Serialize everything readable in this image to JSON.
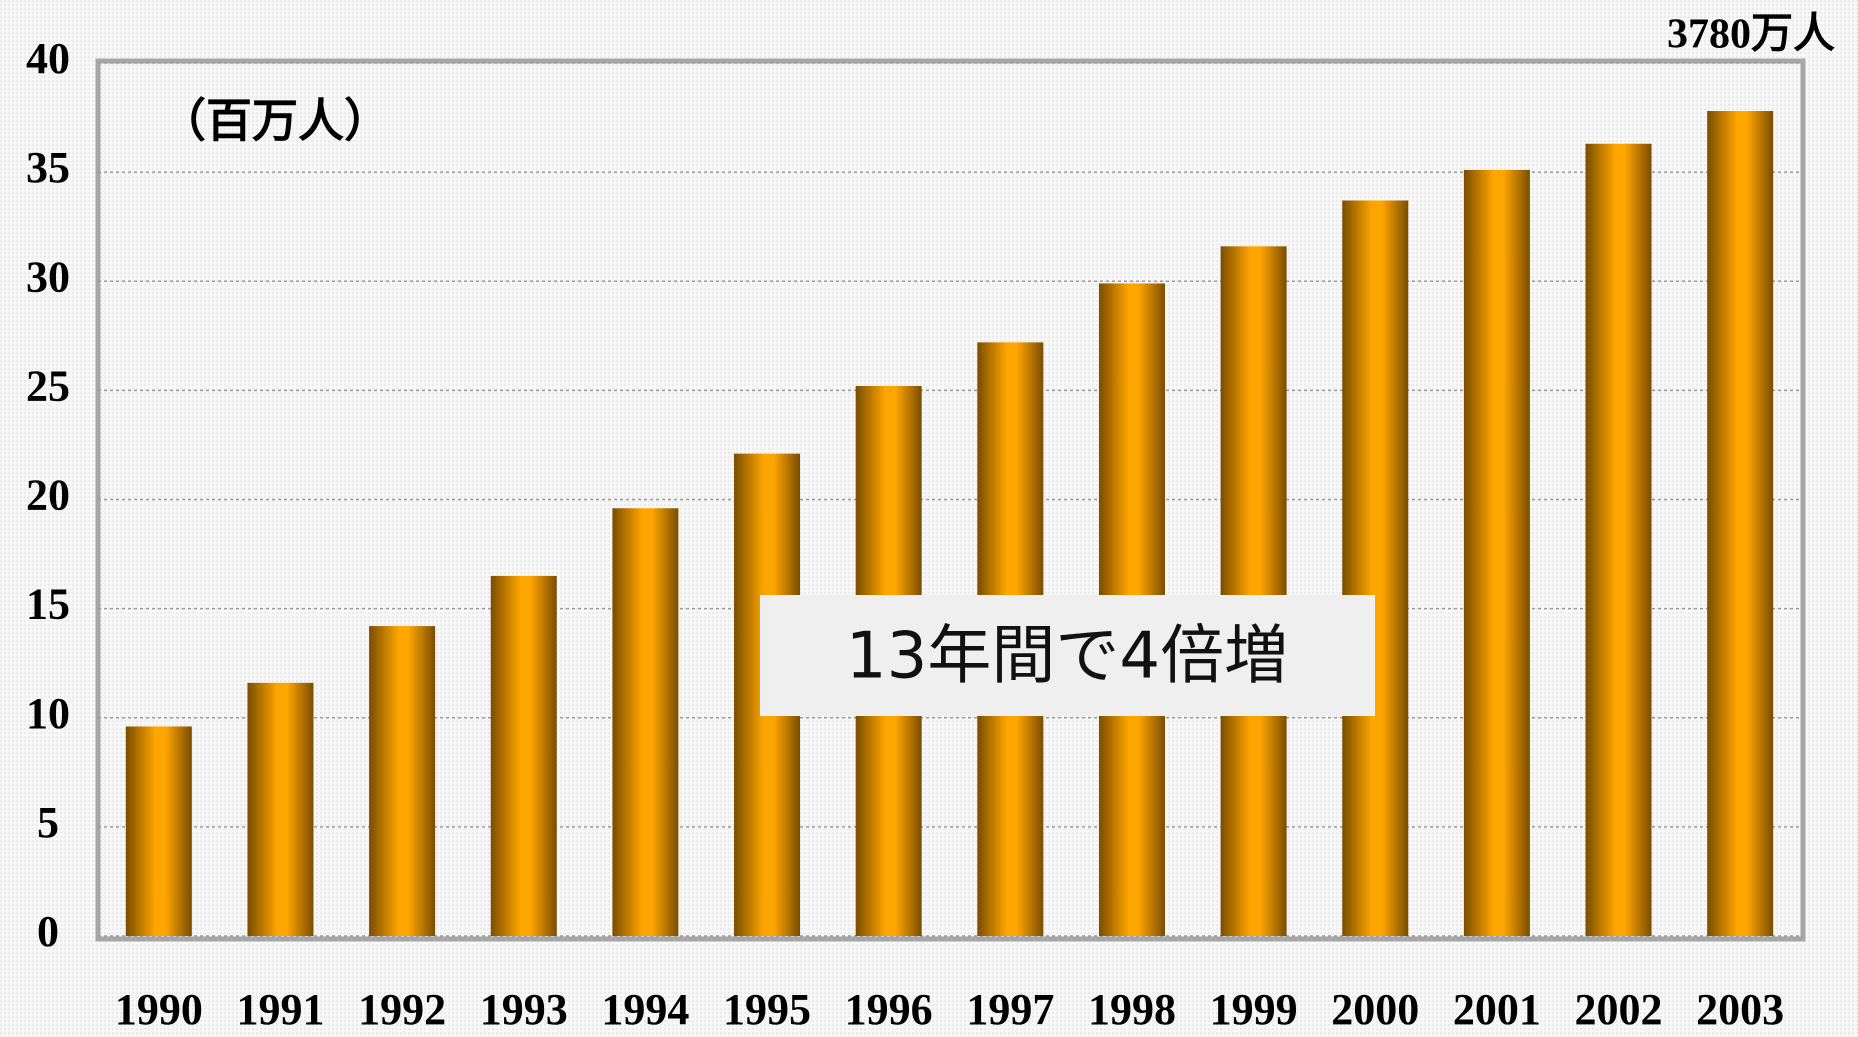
{
  "chart_data": {
    "type": "bar",
    "unit_label": "（百万人）",
    "annotation": "13年間で4倍増",
    "top_label": "3780万人",
    "categories": [
      "1990",
      "1991",
      "1992",
      "1993",
      "1994",
      "1995",
      "1996",
      "1997",
      "1998",
      "1999",
      "2000",
      "2001",
      "2002",
      "2003"
    ],
    "values": [
      9.6,
      11.6,
      14.2,
      16.5,
      19.6,
      22.1,
      25.2,
      27.2,
      29.9,
      31.6,
      33.7,
      35.1,
      36.3,
      37.8
    ],
    "color": "#ffa500",
    "ylim": [
      0,
      40
    ],
    "yticks": [
      0,
      5,
      10,
      15,
      20,
      25,
      30,
      35,
      40
    ],
    "grid": true
  }
}
